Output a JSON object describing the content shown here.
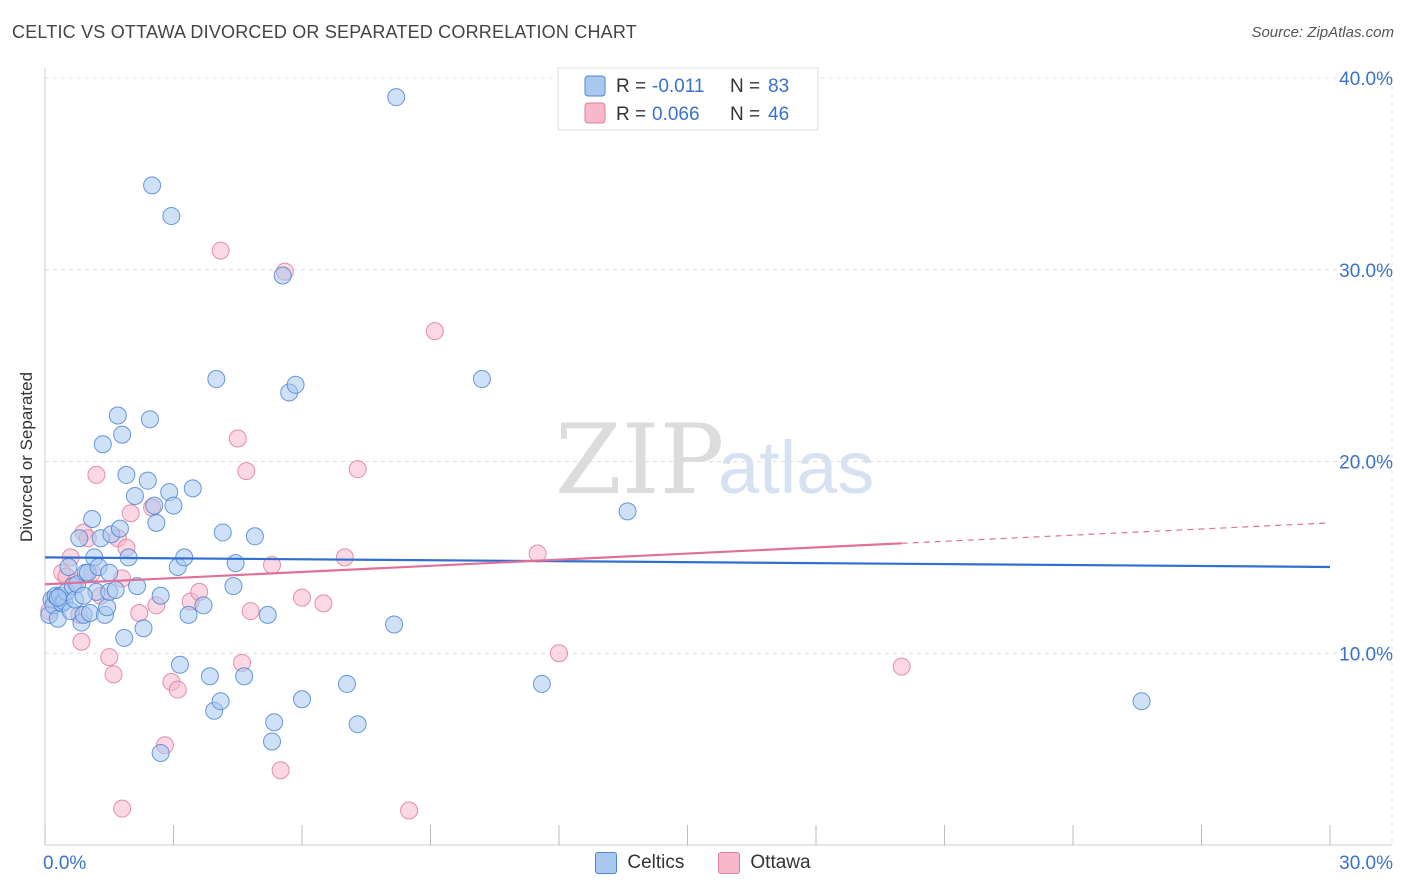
{
  "header": {
    "title": "CELTIC VS OTTAWA DIVORCED OR SEPARATED CORRELATION CHART",
    "source": "Source: ZipAtlas.com"
  },
  "watermark": {
    "part1": "ZIP",
    "part2": "atlas"
  },
  "colors": {
    "celtics_fill": "#a8c8f0",
    "celtics_stroke": "#4f86d1",
    "celtics_line": "#2f6fcf",
    "ottawa_fill": "#f8b8cc",
    "ottawa_stroke": "#e07c9c",
    "ottawa_line": "#e0709a",
    "axis_label": "#3a72c8"
  },
  "legend": {
    "rows": [
      {
        "r_label": "R = ",
        "r_value": "-0.011",
        "n_label": "N = ",
        "n_value": "83"
      },
      {
        "r_label": "R = ",
        "r_value": "0.066",
        "n_label": "N = ",
        "n_value": "46"
      }
    ]
  },
  "bottom_legend": {
    "celtics": "Celtics",
    "ottawa": "Ottawa"
  },
  "chart_data": {
    "type": "scatter",
    "title": "CELTIC VS OTTAWA DIVORCED OR SEPARATED CORRELATION CHART",
    "xlabel": "",
    "ylabel": "Divorced or Separated",
    "xlim": [
      0,
      30
    ],
    "ylim": [
      0,
      40
    ],
    "x_tick_labels": [
      "0.0%",
      "30.0%"
    ],
    "y_ticks": [
      10,
      20,
      30,
      40
    ],
    "y_tick_labels": [
      "10.0%",
      "20.0%",
      "30.0%",
      "40.0%"
    ],
    "grid": true,
    "series": [
      {
        "name": "Celtics",
        "r": -0.011,
        "n": 83,
        "trend": {
          "x": [
            0,
            30
          ],
          "y": [
            15.0,
            14.5
          ]
        },
        "points": [
          [
            0.1,
            12.0
          ],
          [
            0.15,
            12.8
          ],
          [
            0.2,
            12.5
          ],
          [
            0.25,
            13.0
          ],
          [
            0.3,
            11.8
          ],
          [
            0.35,
            13.0
          ],
          [
            0.4,
            12.6
          ],
          [
            0.45,
            12.7
          ],
          [
            0.5,
            13.2
          ],
          [
            0.55,
            14.5
          ],
          [
            0.6,
            12.2
          ],
          [
            0.65,
            13.5
          ],
          [
            0.7,
            12.8
          ],
          [
            0.75,
            13.6
          ],
          [
            0.8,
            16.0
          ],
          [
            0.85,
            11.6
          ],
          [
            0.9,
            12.0
          ],
          [
            0.95,
            14.2
          ],
          [
            1.0,
            14.2
          ],
          [
            1.05,
            12.1
          ],
          [
            1.1,
            17.0
          ],
          [
            1.15,
            15.0
          ],
          [
            1.2,
            13.2
          ],
          [
            1.25,
            14.5
          ],
          [
            1.3,
            16.0
          ],
          [
            1.35,
            20.9
          ],
          [
            1.4,
            12.0
          ],
          [
            1.45,
            12.4
          ],
          [
            1.5,
            13.2
          ],
          [
            1.55,
            16.2
          ],
          [
            1.65,
            13.3
          ],
          [
            1.7,
            22.4
          ],
          [
            1.75,
            16.5
          ],
          [
            1.8,
            21.4
          ],
          [
            1.85,
            10.8
          ],
          [
            1.9,
            19.3
          ],
          [
            1.95,
            15.0
          ],
          [
            2.1,
            18.2
          ],
          [
            2.15,
            13.5
          ],
          [
            2.3,
            11.3
          ],
          [
            2.4,
            19.0
          ],
          [
            2.45,
            22.2
          ],
          [
            2.55,
            17.7
          ],
          [
            2.6,
            16.8
          ],
          [
            2.7,
            13.0
          ],
          [
            2.9,
            18.4
          ],
          [
            3.0,
            17.7
          ],
          [
            3.1,
            14.5
          ],
          [
            3.15,
            9.4
          ],
          [
            3.25,
            15.0
          ],
          [
            3.35,
            12.0
          ],
          [
            3.45,
            18.6
          ],
          [
            3.7,
            12.5
          ],
          [
            3.85,
            8.8
          ],
          [
            3.95,
            7.0
          ],
          [
            4.0,
            24.3
          ],
          [
            4.1,
            7.5
          ],
          [
            4.15,
            16.3
          ],
          [
            4.4,
            13.5
          ],
          [
            4.45,
            14.7
          ],
          [
            4.65,
            8.8
          ],
          [
            4.9,
            16.1
          ],
          [
            5.2,
            12.0
          ],
          [
            5.35,
            6.4
          ],
          [
            5.55,
            29.7
          ],
          [
            5.7,
            23.6
          ],
          [
            5.85,
            24.0
          ],
          [
            6.0,
            7.6
          ],
          [
            7.05,
            8.4
          ],
          [
            7.3,
            6.3
          ],
          [
            2.5,
            34.4
          ],
          [
            2.95,
            32.8
          ],
          [
            8.2,
            39.0
          ],
          [
            8.15,
            11.5
          ],
          [
            10.2,
            24.3
          ],
          [
            11.6,
            8.4
          ],
          [
            13.6,
            17.4
          ],
          [
            25.6,
            7.5
          ],
          [
            5.3,
            5.4
          ],
          [
            2.7,
            4.8
          ],
          [
            0.3,
            12.9
          ],
          [
            1.5,
            14.2
          ],
          [
            0.9,
            13.0
          ]
        ]
      },
      {
        "name": "Ottawa",
        "r": 0.066,
        "n": 46,
        "trend": {
          "x": [
            0,
            30
          ],
          "y": [
            13.6,
            16.8
          ],
          "solid_until_x": 20
        },
        "points": [
          [
            0.1,
            12.2
          ],
          [
            0.2,
            12.8
          ],
          [
            0.3,
            12.9
          ],
          [
            0.4,
            14.2
          ],
          [
            0.5,
            14.0
          ],
          [
            0.6,
            15.0
          ],
          [
            0.7,
            13.7
          ],
          [
            0.8,
            12.0
          ],
          [
            0.85,
            10.6
          ],
          [
            0.9,
            16.3
          ],
          [
            1.0,
            16.0
          ],
          [
            1.1,
            14.2
          ],
          [
            1.2,
            19.3
          ],
          [
            1.3,
            13.0
          ],
          [
            1.5,
            9.8
          ],
          [
            1.6,
            8.9
          ],
          [
            1.7,
            16.0
          ],
          [
            1.8,
            13.9
          ],
          [
            1.9,
            15.5
          ],
          [
            2.0,
            17.3
          ],
          [
            2.2,
            12.1
          ],
          [
            2.5,
            17.6
          ],
          [
            2.6,
            12.5
          ],
          [
            2.8,
            5.2
          ],
          [
            2.95,
            8.5
          ],
          [
            3.1,
            8.1
          ],
          [
            3.4,
            12.7
          ],
          [
            3.6,
            13.2
          ],
          [
            4.1,
            31.0
          ],
          [
            4.5,
            21.2
          ],
          [
            4.6,
            9.5
          ],
          [
            4.7,
            19.5
          ],
          [
            4.8,
            12.2
          ],
          [
            5.3,
            14.6
          ],
          [
            5.5,
            3.9
          ],
          [
            5.6,
            29.9
          ],
          [
            6.0,
            12.9
          ],
          [
            6.5,
            12.6
          ],
          [
            7.0,
            15.0
          ],
          [
            7.3,
            19.6
          ],
          [
            8.5,
            1.8
          ],
          [
            9.1,
            26.8
          ],
          [
            11.5,
            15.2
          ],
          [
            12.0,
            10.0
          ],
          [
            20.0,
            9.3
          ],
          [
            1.8,
            1.9
          ]
        ]
      }
    ]
  }
}
